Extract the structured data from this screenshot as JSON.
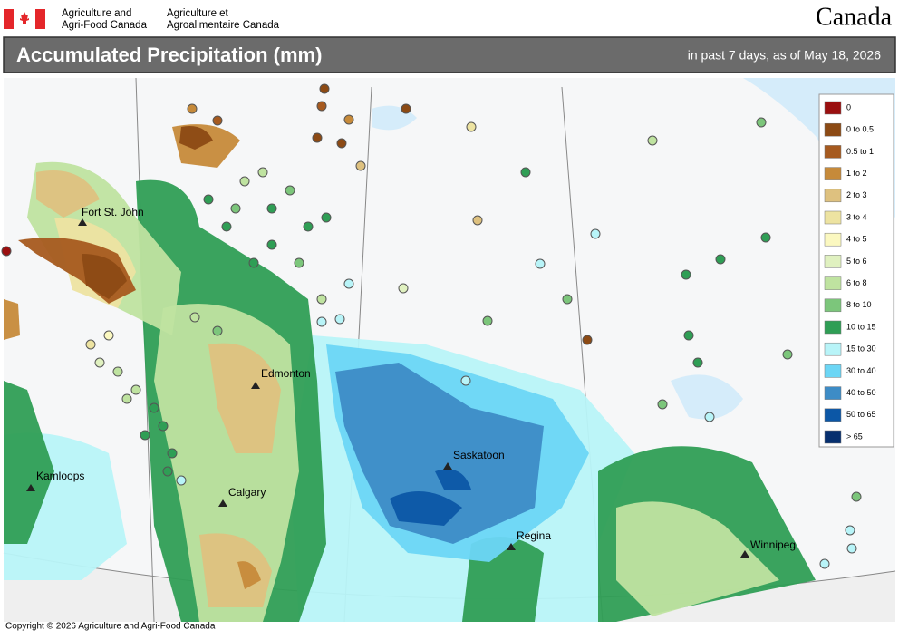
{
  "header": {
    "agency_en_1": "Agriculture and",
    "agency_en_2": "Agri-Food Canada",
    "agency_fr_1": "Agriculture et",
    "agency_fr_2": "Agroalimentaire Canada",
    "wordmark": "Canada"
  },
  "title": "Accumulated Precipitation (mm)",
  "subtitle": "in past 7 days, as of May 18, 2026",
  "legend": [
    {
      "label": "0",
      "color": "#9a0f0f"
    },
    {
      "label": "0 to 0.5",
      "color": "#8c4a14"
    },
    {
      "label": "0.5 to 1",
      "color": "#a65a1f"
    },
    {
      "label": "1 to 2",
      "color": "#c68a3a"
    },
    {
      "label": "2 to 3",
      "color": "#dec17f"
    },
    {
      "label": "3 to 4",
      "color": "#ede3a1"
    },
    {
      "label": "4 to 5",
      "color": "#fbf8c0"
    },
    {
      "label": "5 to 6",
      "color": "#e0f1c0"
    },
    {
      "label": "6 to 8",
      "color": "#bfe3a0"
    },
    {
      "label": "8 to 10",
      "color": "#7cc67b"
    },
    {
      "label": "10 to 15",
      "color": "#2f9e55"
    },
    {
      "label": "15 to 30",
      "color": "#b8f4f8"
    },
    {
      "label": "30 to 40",
      "color": "#6cd6f5"
    },
    {
      "label": "40 to 50",
      "color": "#3d8cc6"
    },
    {
      "label": "50 to 65",
      "color": "#0c57a6"
    },
    {
      "label": "> 65",
      "color": "#062f6e"
    }
  ],
  "cities": [
    {
      "name": "Fort St. John"
    },
    {
      "name": "Edmonton"
    },
    {
      "name": "Kamloops"
    },
    {
      "name": "Calgary"
    },
    {
      "name": "Saskatoon"
    },
    {
      "name": "Regina"
    },
    {
      "name": "Winnipeg"
    }
  ],
  "copyright": "Copyright © 2026 Agriculture and Agri-Food Canada"
}
